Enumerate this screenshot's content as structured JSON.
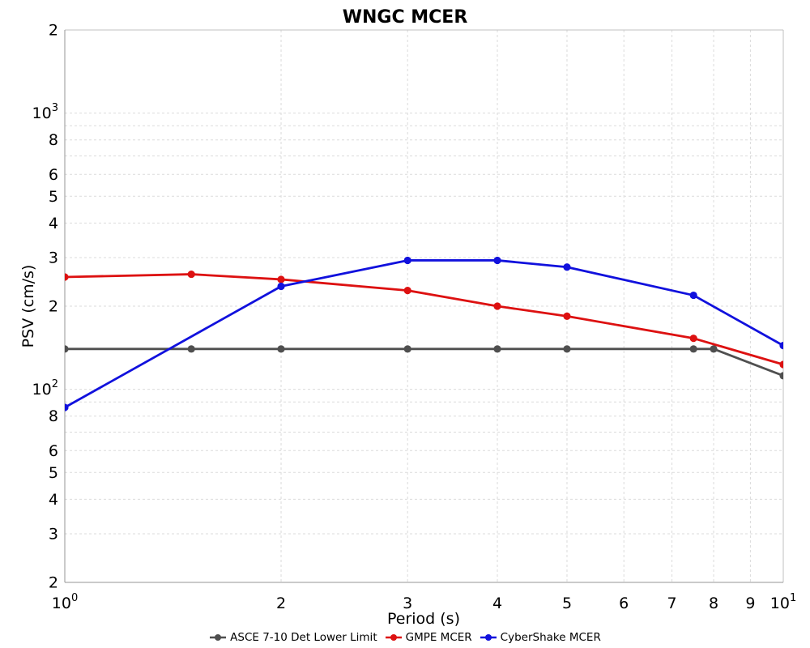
{
  "chart_data": {
    "type": "line",
    "title": "WNGC MCER",
    "xlabel": "Period (s)",
    "ylabel": "PSV (cm/s)",
    "xscale": "log",
    "yscale": "log",
    "xlim": [
      1,
      10
    ],
    "ylim": [
      20,
      2000
    ],
    "grid": {
      "show": true,
      "style": "dashed",
      "color": "#dbdbdb",
      "at": "every minor log step, both axes"
    },
    "legend_position": "bottom-center",
    "background": "#ffffff",
    "x_ticks": [
      {
        "v": 1,
        "label": "10^0"
      },
      {
        "v": 2,
        "label": "2"
      },
      {
        "v": 3,
        "label": "3"
      },
      {
        "v": 4,
        "label": "4"
      },
      {
        "v": 5,
        "label": "5"
      },
      {
        "v": 6,
        "label": "6"
      },
      {
        "v": 7,
        "label": "7"
      },
      {
        "v": 8,
        "label": "8"
      },
      {
        "v": 9,
        "label": "9"
      },
      {
        "v": 10,
        "label": "10^1"
      }
    ],
    "y_ticks": [
      {
        "v": 2000,
        "label": "2"
      },
      {
        "v": 1000,
        "label": "10^3"
      },
      {
        "v": 800,
        "label": "8"
      },
      {
        "v": 600,
        "label": "6"
      },
      {
        "v": 500,
        "label": "5"
      },
      {
        "v": 400,
        "label": "4"
      },
      {
        "v": 300,
        "label": "3"
      },
      {
        "v": 200,
        "label": "2"
      },
      {
        "v": 100,
        "label": "10^2"
      },
      {
        "v": 80,
        "label": "8"
      },
      {
        "v": 60,
        "label": "6"
      },
      {
        "v": 50,
        "label": "5"
      },
      {
        "v": 40,
        "label": "4"
      },
      {
        "v": 30,
        "label": "3"
      },
      {
        "v": 20,
        "label": "2"
      }
    ],
    "series": [
      {
        "name": "ASCE 7-10 Det Lower Limit",
        "color": "#4f4f4f",
        "x": [
          1,
          1.5,
          2,
          3,
          4,
          5,
          7.5,
          8,
          10
        ],
        "values": [
          140,
          140,
          140,
          140,
          140,
          140,
          140,
          140,
          112
        ]
      },
      {
        "name": "GMPE MCER",
        "color": "#dd1111",
        "x": [
          1,
          1.5,
          2,
          3,
          4,
          5,
          7.5,
          10
        ],
        "values": [
          255,
          261,
          250,
          228,
          200,
          184,
          153,
          123
        ]
      },
      {
        "name": "CyberShake MCER",
        "color": "#1111dd",
        "x": [
          1,
          2,
          3,
          4,
          5,
          7.5,
          10
        ],
        "values": [
          86,
          236,
          293,
          293,
          277,
          219,
          144
        ]
      }
    ]
  }
}
